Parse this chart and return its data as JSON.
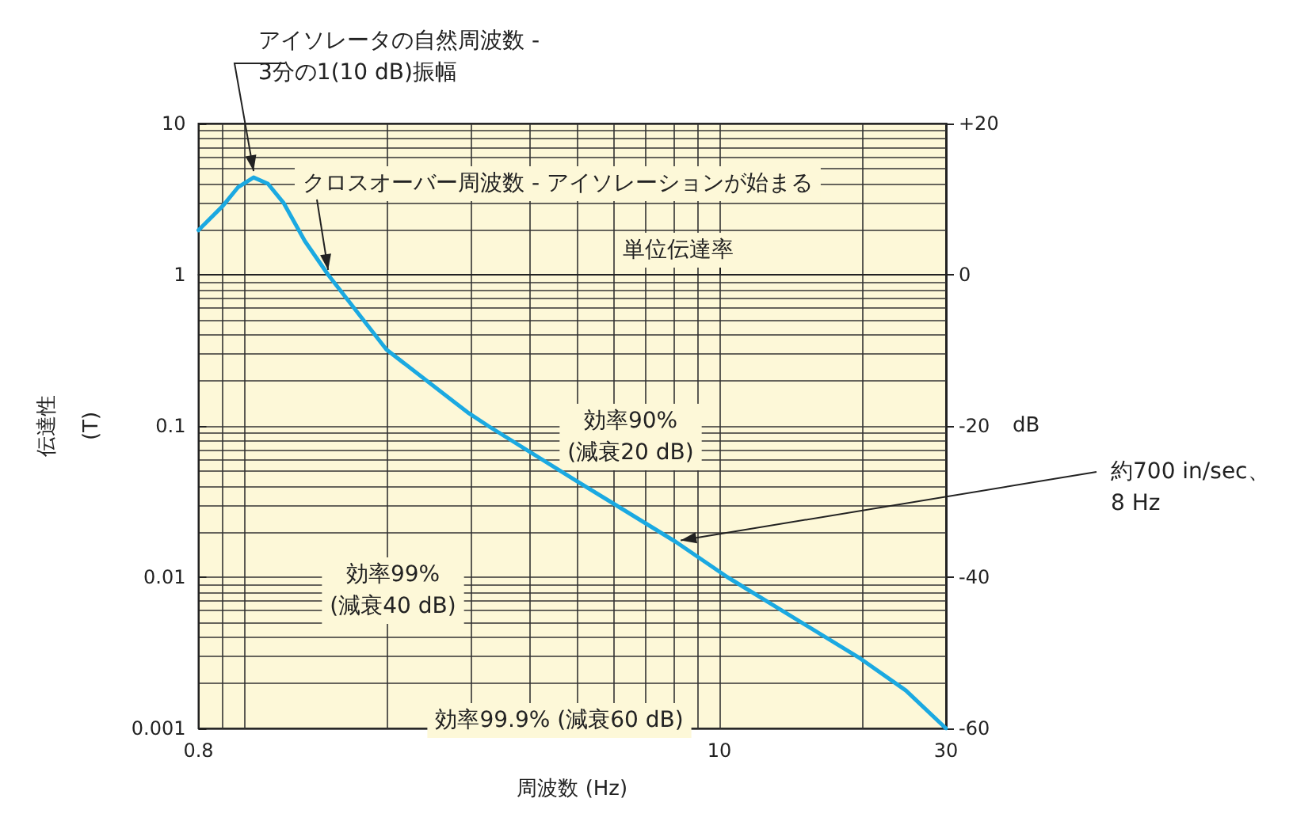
{
  "chart_data": {
    "type": "line",
    "xlabel": "周波数 (Hz)",
    "ylabel": "伝達性\n(T)",
    "y2label": "dB",
    "log": "xy",
    "grid": true,
    "marker": "none",
    "line_style": "solid",
    "xlim": [
      0.8,
      30
    ],
    "xticks": [
      0.8,
      10,
      30
    ],
    "ylim": [
      0.001,
      10
    ],
    "yticks": [
      0.001,
      0.01,
      0.1,
      1,
      10
    ],
    "y2lim": [
      -60,
      20
    ],
    "y2ticks": [
      -60,
      -40,
      -20,
      0,
      {
        "value": 20,
        "label": "+20"
      }
    ],
    "x": [
      0.8,
      0.9,
      0.97,
      1.045,
      1.12,
      1.21,
      1.34,
      1.5,
      1.99,
      2.95,
      3.26,
      4.96,
      8.1,
      10.4,
      19.8,
      24.7,
      30
    ],
    "series": [
      {
        "color": "#1ba9e1",
        "values": [
          1.97,
          2.85,
          3.8,
          4.4,
          4.0,
          2.97,
          1.67,
          1,
          0.32,
          0.123,
          0.1,
          0.044,
          0.0171,
          0.01,
          0.0029,
          0.00178,
          0.001
        ]
      }
    ],
    "annotations": [
      {
        "text": "アイソレータの自然周波数 -\n3分の1(10 dB)振幅",
        "x": 1.045,
        "y": 4.4
      },
      {
        "text": "クロスオーバー周波数 - アイソレーションが始まる",
        "x": 1.5,
        "y": 1
      },
      "単位伝達率",
      "効率90%\n(減衰20 dB)",
      "効率99%\n(減衰40 dB)",
      "効率99.9% (減衰60 dB)",
      {
        "text": "約700 in/sec、\n8 Hz",
        "x": 8.1,
        "y": 0.0171
      }
    ]
  }
}
